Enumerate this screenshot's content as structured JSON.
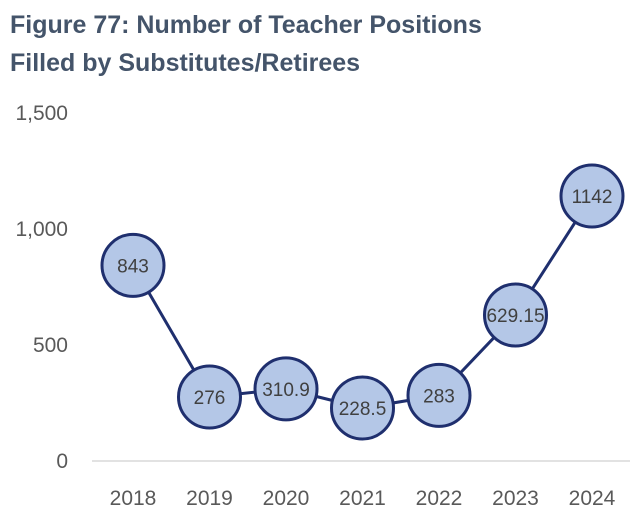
{
  "chart_data": {
    "type": "line",
    "title_line1": "Figure 77: Number of Teacher Positions",
    "title_line2": "Filled by Substitutes/Retirees",
    "categories": [
      "2018",
      "2019",
      "2020",
      "2021",
      "2022",
      "2023",
      "2024"
    ],
    "values": [
      843,
      276,
      310.9,
      228.5,
      283,
      629.15,
      1142
    ],
    "data_labels": [
      "843",
      "276",
      "310.9",
      "228.5",
      "283",
      "629.15",
      "1142"
    ],
    "y_ticks": [
      0,
      500,
      1000,
      1500
    ],
    "y_tick_labels": [
      "0",
      "500",
      "1,000",
      "1,500"
    ],
    "ylim": [
      0,
      1500
    ],
    "grid": false,
    "legend": "none",
    "colors": {
      "line": "#1f2f6e",
      "marker_fill": "#b4c7e7",
      "marker_stroke": "#1f2f6e",
      "title": "#44546a",
      "axis": "#d9d9d9"
    }
  }
}
